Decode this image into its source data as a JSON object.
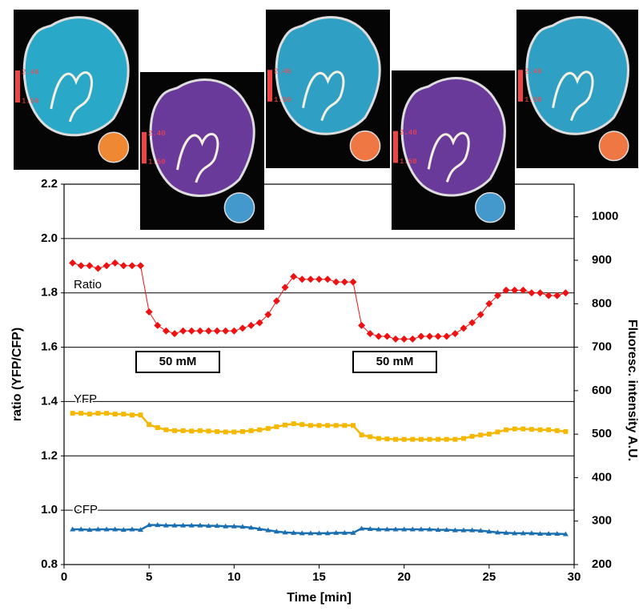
{
  "chart_data": {
    "type": "line",
    "xlabel": "Time [min]",
    "ylabel": "ratio (YFP/CFP)",
    "y2label": "Fluoresc. intensity A.U.",
    "xlim": [
      0,
      30
    ],
    "xticks": [
      0,
      5,
      10,
      15,
      20,
      25,
      30
    ],
    "ylim": [
      0.8,
      2.2
    ],
    "yticks": [
      0.8,
      {
        "value": 1.0,
        "label": "1.0"
      },
      1.2,
      1.4,
      1.6,
      1.8,
      {
        "value": 2.0,
        "label": "2.0"
      },
      2.2
    ],
    "y2lim": [
      200,
      1075
    ],
    "y2ticks": [
      200,
      300,
      400,
      500,
      600,
      700,
      800,
      900,
      1000
    ],
    "grid": true,
    "annotations": [
      "Ratio",
      "YFP",
      "CFP",
      "50 mM",
      "50 mM"
    ],
    "x": [
      0.5,
      1,
      1.5,
      2,
      2.5,
      3,
      3.5,
      4,
      4.5,
      5,
      5.5,
      6,
      6.5,
      7,
      7.5,
      8,
      8.5,
      9,
      9.5,
      10,
      10.5,
      11,
      11.5,
      12,
      12.5,
      13,
      13.5,
      14,
      14.5,
      15,
      15.5,
      16,
      16.5,
      17,
      17.5,
      18,
      18.5,
      19,
      19.5,
      20,
      20.5,
      21,
      21.5,
      22,
      22.5,
      23,
      23.5,
      24,
      24.5,
      25,
      25.5,
      26,
      26.5,
      27,
      27.5,
      28,
      28.5,
      29,
      29.5
    ],
    "series": [
      {
        "name": "Ratio",
        "color": "#ee1111",
        "marker": "diamond",
        "values": [
          1.91,
          1.9,
          1.9,
          1.89,
          1.9,
          1.91,
          1.9,
          1.9,
          1.9,
          1.73,
          1.68,
          1.66,
          1.65,
          1.66,
          1.66,
          1.66,
          1.66,
          1.66,
          1.66,
          1.66,
          1.67,
          1.68,
          1.69,
          1.72,
          1.77,
          1.82,
          1.86,
          1.85,
          1.85,
          1.85,
          1.85,
          1.84,
          1.84,
          1.84,
          1.68,
          1.65,
          1.64,
          1.64,
          1.63,
          1.63,
          1.63,
          1.64,
          1.64,
          1.64,
          1.64,
          1.65,
          1.67,
          1.69,
          1.72,
          1.76,
          1.79,
          1.81,
          1.81,
          1.81,
          1.8,
          1.8,
          1.79,
          1.79,
          1.8
        ]
      },
      {
        "name": "YFP",
        "color": "#f5b800",
        "marker": "square",
        "axis": "y2",
        "values": [
          548,
          548,
          546,
          548,
          548,
          546,
          546,
          544,
          544,
          522,
          515,
          510,
          508,
          508,
          507,
          508,
          507,
          506,
          505,
          505,
          506,
          508,
          510,
          513,
          517,
          521,
          524,
          522,
          520,
          520,
          520,
          520,
          520,
          520,
          498,
          494,
          490,
          489,
          488,
          488,
          488,
          488,
          488,
          488,
          488,
          488,
          490,
          495,
          498,
          500,
          505,
          510,
          512,
          512,
          511,
          510,
          510,
          508,
          506
        ]
      },
      {
        "name": "CFP",
        "color": "#1a6fb0",
        "marker": "triangle",
        "axis": "y2",
        "values": [
          281,
          281,
          280,
          281,
          281,
          281,
          280,
          281,
          280,
          291,
          291,
          290,
          290,
          290,
          290,
          290,
          289,
          289,
          288,
          288,
          287,
          285,
          282,
          279,
          276,
          274,
          273,
          272,
          272,
          272,
          272,
          273,
          273,
          273,
          283,
          282,
          281,
          281,
          281,
          281,
          281,
          281,
          281,
          280,
          280,
          279,
          279,
          279,
          278,
          276,
          274,
          273,
          272,
          272,
          272,
          271,
          271,
          271,
          270
        ]
      }
    ]
  },
  "images": [
    {
      "scale_max": "2.40",
      "scale_min": "1.50"
    },
    {
      "scale_max": "2.40",
      "scale_min": "1.50"
    },
    {
      "scale_max": "2.40",
      "scale_min": "1.50"
    },
    {
      "scale_max": "2.40",
      "scale_min": "1.50"
    },
    {
      "scale_max": "2.40",
      "scale_min": "1.50"
    }
  ]
}
